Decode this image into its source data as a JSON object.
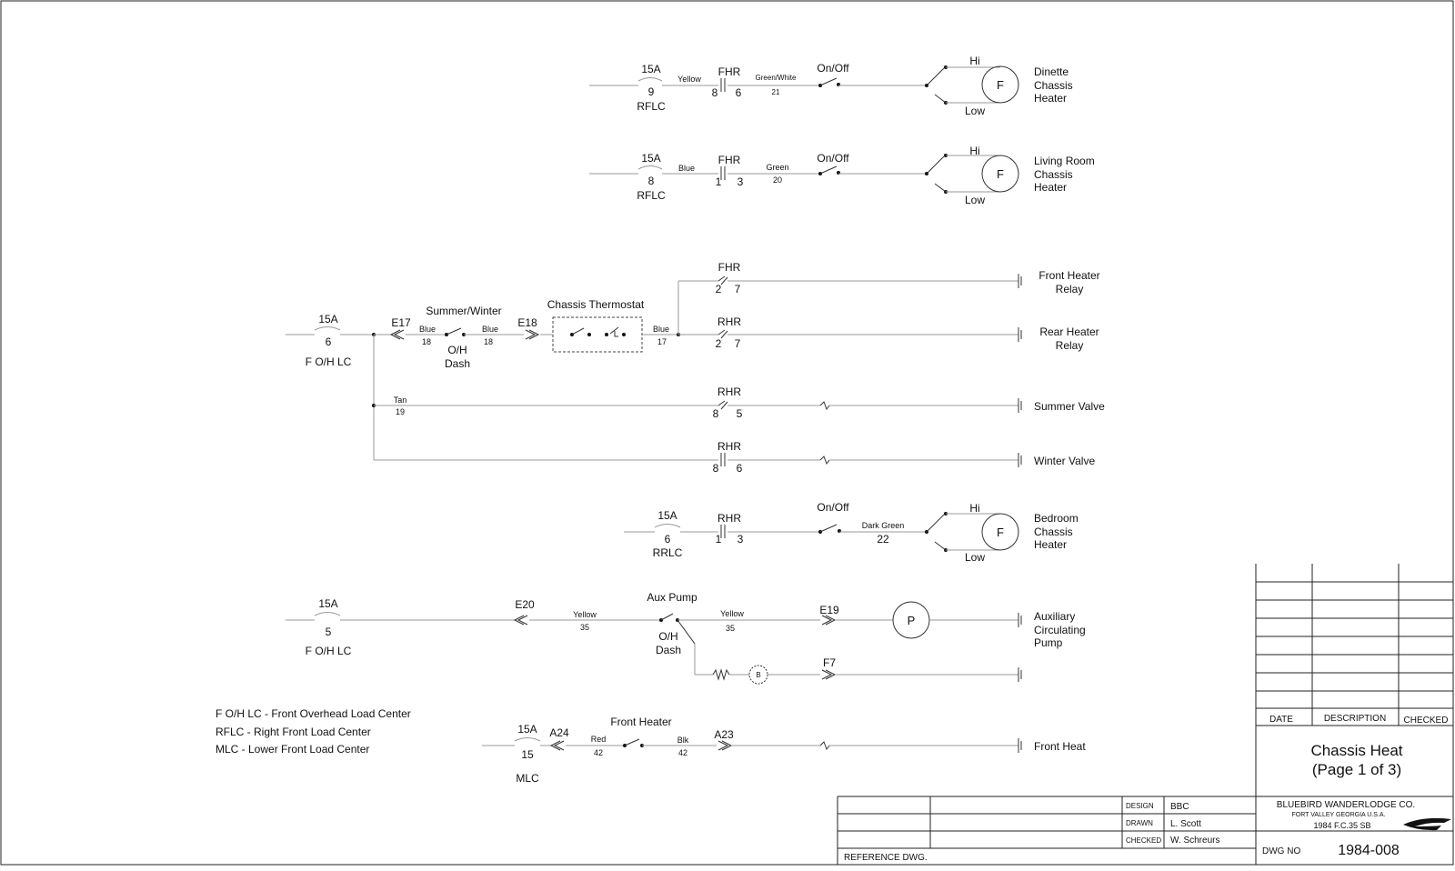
{
  "rows": {
    "dinette": {
      "breaker": {
        "rating": "15A",
        "number": "9",
        "panel": "RFLC"
      },
      "wire1": "Yellow",
      "relay": {
        "name": "FHR",
        "left": "8",
        "right": "6"
      },
      "wire2": {
        "color": "Green/White",
        "number": "21"
      },
      "switch": "On/Off",
      "hi": "Hi",
      "low": "Low",
      "motor": "F",
      "load": [
        "Dinette",
        "Chassis",
        "Heater"
      ]
    },
    "living": {
      "breaker": {
        "rating": "15A",
        "number": "8",
        "panel": "RFLC"
      },
      "wire1": "Blue",
      "relay": {
        "name": "FHR",
        "left": "1",
        "right": "3"
      },
      "wire2": {
        "color": "Green",
        "number": "20"
      },
      "switch": "On/Off",
      "hi": "Hi",
      "low": "Low",
      "motor": "F",
      "load": [
        "Living Room",
        "Chassis",
        "Heater"
      ]
    },
    "thermo": {
      "breaker": {
        "rating": "15A",
        "number": "6",
        "panel": "F O/H LC"
      },
      "e17": "E17",
      "wire_a": {
        "color": "Blue",
        "number": "18"
      },
      "switch_title": "Summer/Winter",
      "switch_loc": [
        "O/H",
        "Dash"
      ],
      "wire_b": {
        "color": "Blue",
        "number": "18"
      },
      "e18": "E18",
      "thermostat": "Chassis Thermostat",
      "wire_c": {
        "color": "Blue",
        "number": "17"
      },
      "fhr": {
        "name": "FHR",
        "left": "2",
        "right": "7"
      },
      "rhr": {
        "name": "RHR",
        "left": "2",
        "right": "7"
      },
      "front_relay": [
        "Front Heater",
        "Relay"
      ],
      "rear_relay": [
        "Rear Heater",
        "Relay"
      ]
    },
    "summer": {
      "wire": {
        "color": "Tan",
        "number": "19"
      },
      "relay": {
        "name": "RHR",
        "left": "8",
        "right": "5"
      },
      "load": "Summer Valve"
    },
    "winter": {
      "relay": {
        "name": "RHR",
        "left": "8",
        "right": "6"
      },
      "load": "Winter Valve"
    },
    "bedroom": {
      "breaker": {
        "rating": "15A",
        "number": "6",
        "panel": "RRLC"
      },
      "relay": {
        "name": "RHR",
        "left": "1",
        "right": "3"
      },
      "switch": "On/Off",
      "wire": {
        "color": "Dark Green",
        "number": "22"
      },
      "hi": "Hi",
      "low": "Low",
      "motor": "F",
      "load": [
        "Bedroom",
        "Chassis",
        "Heater"
      ]
    },
    "aux": {
      "breaker": {
        "rating": "15A",
        "number": "5",
        "panel": "F O/H LC"
      },
      "e20": "E20",
      "wire_a": {
        "color": "Yellow",
        "number": "35"
      },
      "switch_title": "Aux Pump",
      "switch_loc": [
        "O/H",
        "Dash"
      ],
      "wire_b": {
        "color": "Yellow",
        "number": "35"
      },
      "e19": "E19",
      "pump": "P",
      "bulb": "B",
      "f7": "F7",
      "load": [
        "Auxiliary",
        "Circulating",
        "Pump"
      ]
    },
    "front": {
      "breaker": {
        "rating": "15A",
        "number": "15",
        "panel": "MLC"
      },
      "a24": "A24",
      "wire_a": {
        "color": "Red",
        "number": "42"
      },
      "switch_title": "Front Heater",
      "wire_b": {
        "color": "Blk",
        "number": "42"
      },
      "a23": "A23",
      "load": "Front Heat"
    }
  },
  "legend": [
    "F O/H LC - Front Overhead Load Center",
    "RFLC - Right Front Load Center",
    "MLC - Lower Front Load Center"
  ],
  "revision_block": {
    "date": "DATE",
    "description": "DESCRIPTION",
    "checked": "CHECKED"
  },
  "title_block": {
    "title_line1": "Chassis Heat",
    "title_line2": "(Page 1 of 3)",
    "design_label": "DESIGN",
    "design": "BBC",
    "drawn_label": "DRAWN",
    "drawn": "L. Scott",
    "checked_label": "CHECKED",
    "checked": "W. Schreurs",
    "company": "BLUEBIRD WANDERLODGE CO.",
    "location": "FORT VALLEY GEORGIA U.S.A.",
    "model": "1984 F.C.35 SB",
    "dwg_label": "DWG NO",
    "dwg_no": "1984-008",
    "reference": "REFERENCE DWG."
  }
}
